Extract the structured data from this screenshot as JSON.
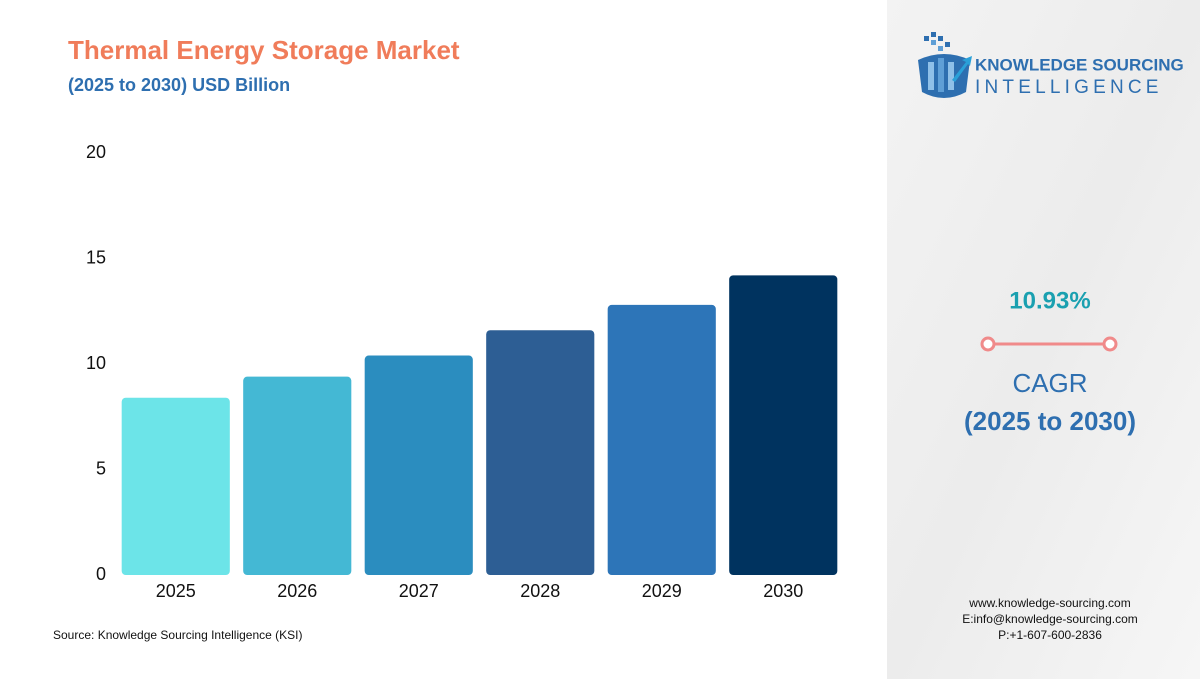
{
  "chart_data": {
    "type": "bar",
    "title": "Thermal Energy Storage Market",
    "subtitle": "(2025 to 2030) USD Billion",
    "categories": [
      "2025",
      "2026",
      "2027",
      "2028",
      "2029",
      "2030"
    ],
    "values": [
      8.4,
      9.4,
      10.4,
      11.6,
      12.8,
      14.2
    ],
    "colors": [
      "#6ce4e8",
      "#44b8d4",
      "#2b8dbf",
      "#2d5e94",
      "#2d75b8",
      "#00335f"
    ],
    "ylim": [
      0,
      20
    ],
    "yticks": [
      0,
      5,
      10,
      15,
      20
    ],
    "grid": false
  },
  "source": "Source: Knowledge Sourcing Intelligence (KSI)",
  "logo": {
    "line1": "KNOWLEDGE SOURCING",
    "line2": "INTELLIGENCE"
  },
  "cagr": {
    "value": "10.93%",
    "label": "CAGR",
    "period": "(2025 to 2030)"
  },
  "contact": [
    "www.knowledge-sourcing.com",
    "E:info@knowledge-sourcing.com",
    "P:+1-607-600-2836"
  ]
}
